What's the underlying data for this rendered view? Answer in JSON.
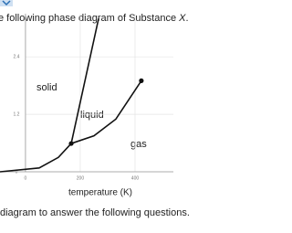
{
  "chart_data": {
    "type": "line",
    "title": "e following phase diagram of Substance",
    "title_var": "X",
    "title_end": ".",
    "xlabel": "temperature (K)",
    "footer": "diagram to answer the following questions.",
    "annotations": [
      "solid",
      "liquid",
      "gas"
    ],
    "xlim": [
      -93,
      540
    ],
    "ylim": [
      0,
      3.3
    ],
    "xticks": [
      0,
      200,
      400
    ],
    "yticks": [
      0,
      1.2,
      2.4
    ],
    "grid": true,
    "series": [
      {
        "color": "#111111",
        "x": [
          -93,
          50,
          120,
          167
        ],
        "values": [
          0,
          0.08,
          0.3,
          0.59
        ]
      },
      {
        "color": "#111111",
        "x": [
          167,
          267
        ],
        "values": [
          0.59,
          3.2
        ]
      },
      {
        "color": "#111111",
        "x": [
          167,
          250,
          330,
          423
        ],
        "values": [
          0.59,
          0.75,
          1.1,
          1.9
        ]
      }
    ],
    "points": {
      "color": "#111111",
      "x": [
        167,
        423
      ],
      "values": [
        0.59,
        1.9
      ]
    }
  }
}
